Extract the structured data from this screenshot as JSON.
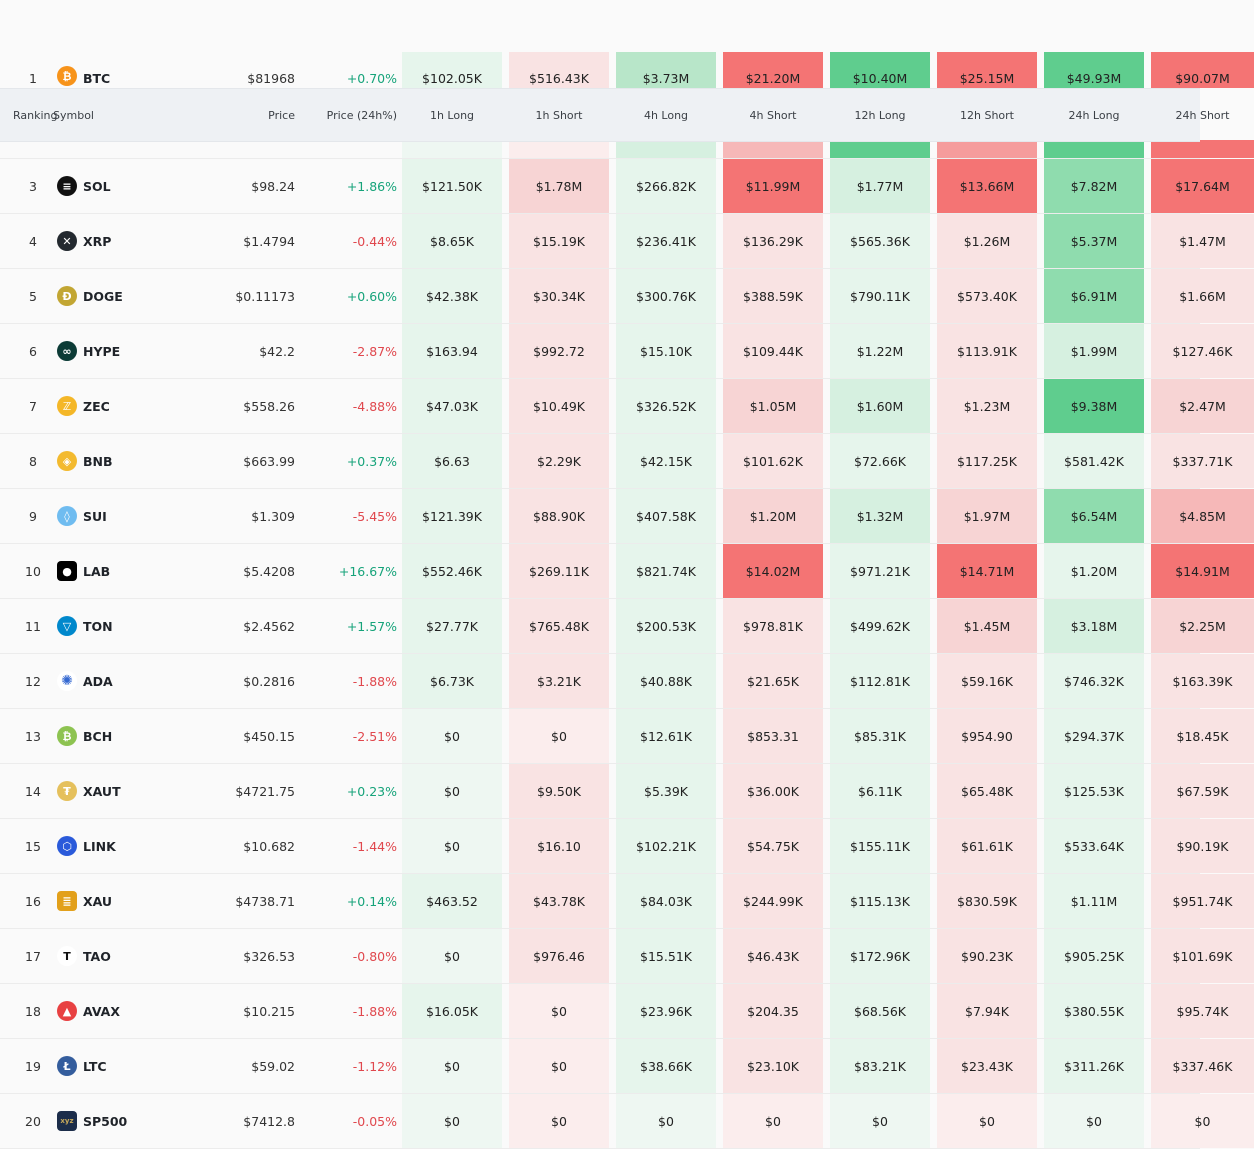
{
  "header": {
    "ranking": "Ranking",
    "symbol": "Symbol",
    "price": "Price",
    "change": "Price (24h%)",
    "cols": [
      "1h Long",
      "1h Short",
      "4h Long",
      "4h Short",
      "12h Long",
      "12h Short",
      "24h Long",
      "24h Short"
    ]
  },
  "heat_colors": {
    "long": [
      "#eef7f2",
      "#e6f5ec",
      "#d6f0e0",
      "#b8e6c9",
      "#8fdcae",
      "#5fcd8e"
    ],
    "short": [
      "#fbeded",
      "#f9e3e3",
      "#f7d4d4",
      "#f6b8b8",
      "#f59c9c",
      "#f47474"
    ]
  },
  "rows": [
    {
      "rank": "1",
      "symbol": "BTC",
      "icon": "bitcoin-icon",
      "icon_text": "₿",
      "icon_color": "#f7931a",
      "price": "$81968",
      "change": "+0.70%",
      "dir": "pos",
      "cells": [
        {
          "v": "$102.05K",
          "l": 1
        },
        {
          "v": "$516.43K",
          "l": 1
        },
        {
          "v": "$3.73M",
          "l": 3
        },
        {
          "v": "$21.20M",
          "l": 5
        },
        {
          "v": "$10.40M",
          "l": 5
        },
        {
          "v": "$25.15M",
          "l": 5
        },
        {
          "v": "$49.93M",
          "l": 5
        },
        {
          "v": "$90.07M",
          "l": 5
        }
      ]
    },
    {
      "rank": "3",
      "symbol": "SOL",
      "icon": "solana-icon",
      "icon_text": "≡",
      "icon_color": "#111111",
      "price": "$98.24",
      "change": "+1.86%",
      "dir": "pos",
      "cells": [
        {
          "v": "$121.50K",
          "l": 1
        },
        {
          "v": "$1.78M",
          "l": 2
        },
        {
          "v": "$266.82K",
          "l": 1
        },
        {
          "v": "$11.99M",
          "l": 5
        },
        {
          "v": "$1.77M",
          "l": 2
        },
        {
          "v": "$13.66M",
          "l": 5
        },
        {
          "v": "$7.82M",
          "l": 4
        },
        {
          "v": "$17.64M",
          "l": 5
        }
      ]
    },
    {
      "rank": "4",
      "symbol": "XRP",
      "icon": "xrp-icon",
      "icon_text": "✕",
      "icon_color": "#23292f",
      "price": "$1.4794",
      "change": "-0.44%",
      "dir": "neg",
      "cells": [
        {
          "v": "$8.65K",
          "l": 1
        },
        {
          "v": "$15.19K",
          "l": 1
        },
        {
          "v": "$236.41K",
          "l": 1
        },
        {
          "v": "$136.29K",
          "l": 1
        },
        {
          "v": "$565.36K",
          "l": 1
        },
        {
          "v": "$1.26M",
          "l": 1
        },
        {
          "v": "$5.37M",
          "l": 4
        },
        {
          "v": "$1.47M",
          "l": 1
        }
      ]
    },
    {
      "rank": "5",
      "symbol": "DOGE",
      "icon": "doge-icon",
      "icon_text": "Ð",
      "icon_color": "#c2a633",
      "price": "$0.11173",
      "change": "+0.60%",
      "dir": "pos",
      "cells": [
        {
          "v": "$42.38K",
          "l": 1
        },
        {
          "v": "$30.34K",
          "l": 1
        },
        {
          "v": "$300.76K",
          "l": 1
        },
        {
          "v": "$388.59K",
          "l": 1
        },
        {
          "v": "$790.11K",
          "l": 1
        },
        {
          "v": "$573.40K",
          "l": 1
        },
        {
          "v": "$6.91M",
          "l": 4
        },
        {
          "v": "$1.66M",
          "l": 1
        }
      ]
    },
    {
      "rank": "6",
      "symbol": "HYPE",
      "icon": "hyperliquid-icon",
      "icon_text": "∞",
      "icon_color": "#0c3b36",
      "price": "$42.2",
      "change": "-2.87%",
      "dir": "neg",
      "cells": [
        {
          "v": "$163.94",
          "l": 1
        },
        {
          "v": "$992.72",
          "l": 1
        },
        {
          "v": "$15.10K",
          "l": 1
        },
        {
          "v": "$109.44K",
          "l": 1
        },
        {
          "v": "$1.22M",
          "l": 1
        },
        {
          "v": "$113.91K",
          "l": 1
        },
        {
          "v": "$1.99M",
          "l": 2
        },
        {
          "v": "$127.46K",
          "l": 1
        }
      ]
    },
    {
      "rank": "7",
      "symbol": "ZEC",
      "icon": "zcash-icon",
      "icon_text": "ℤ",
      "icon_color": "#f4b728",
      "price": "$558.26",
      "change": "-4.88%",
      "dir": "neg",
      "cells": [
        {
          "v": "$47.03K",
          "l": 1
        },
        {
          "v": "$10.49K",
          "l": 1
        },
        {
          "v": "$326.52K",
          "l": 1
        },
        {
          "v": "$1.05M",
          "l": 2
        },
        {
          "v": "$1.60M",
          "l": 2
        },
        {
          "v": "$1.23M",
          "l": 1
        },
        {
          "v": "$9.38M",
          "l": 5
        },
        {
          "v": "$2.47M",
          "l": 2
        }
      ]
    },
    {
      "rank": "8",
      "symbol": "BNB",
      "icon": "bnb-icon",
      "icon_text": "◈",
      "icon_color": "#f3ba2f",
      "price": "$663.99",
      "change": "+0.37%",
      "dir": "pos",
      "cells": [
        {
          "v": "$6.63",
          "l": 1
        },
        {
          "v": "$2.29K",
          "l": 1
        },
        {
          "v": "$42.15K",
          "l": 1
        },
        {
          "v": "$101.62K",
          "l": 1
        },
        {
          "v": "$72.66K",
          "l": 1
        },
        {
          "v": "$117.25K",
          "l": 1
        },
        {
          "v": "$581.42K",
          "l": 1
        },
        {
          "v": "$337.71K",
          "l": 1
        }
      ]
    },
    {
      "rank": "9",
      "symbol": "SUI",
      "icon": "sui-icon",
      "icon_text": "◊",
      "icon_color": "#6fbcf0",
      "price": "$1.309",
      "change": "-5.45%",
      "dir": "neg",
      "cells": [
        {
          "v": "$121.39K",
          "l": 1
        },
        {
          "v": "$88.90K",
          "l": 1
        },
        {
          "v": "$407.58K",
          "l": 1
        },
        {
          "v": "$1.20M",
          "l": 2
        },
        {
          "v": "$1.32M",
          "l": 2
        },
        {
          "v": "$1.97M",
          "l": 2
        },
        {
          "v": "$6.54M",
          "l": 4
        },
        {
          "v": "$4.85M",
          "l": 3
        }
      ]
    },
    {
      "rank": "10",
      "symbol": "LAB",
      "icon": "lab-icon",
      "icon_text": "●",
      "icon_color": "#000000",
      "price": "$5.4208",
      "change": "+16.67%",
      "dir": "pos",
      "cells": [
        {
          "v": "$552.46K",
          "l": 1
        },
        {
          "v": "$269.11K",
          "l": 1
        },
        {
          "v": "$821.74K",
          "l": 1
        },
        {
          "v": "$14.02M",
          "l": 5
        },
        {
          "v": "$971.21K",
          "l": 1
        },
        {
          "v": "$14.71M",
          "l": 5
        },
        {
          "v": "$1.20M",
          "l": 1
        },
        {
          "v": "$14.91M",
          "l": 5
        }
      ]
    },
    {
      "rank": "11",
      "symbol": "TON",
      "icon": "ton-icon",
      "icon_text": "▽",
      "icon_color": "#0088cc",
      "price": "$2.4562",
      "change": "+1.57%",
      "dir": "pos",
      "cells": [
        {
          "v": "$27.77K",
          "l": 1
        },
        {
          "v": "$765.48K",
          "l": 1
        },
        {
          "v": "$200.53K",
          "l": 1
        },
        {
          "v": "$978.81K",
          "l": 1
        },
        {
          "v": "$499.62K",
          "l": 1
        },
        {
          "v": "$1.45M",
          "l": 2
        },
        {
          "v": "$3.18M",
          "l": 2
        },
        {
          "v": "$2.25M",
          "l": 2
        }
      ]
    },
    {
      "rank": "12",
      "symbol": "ADA",
      "icon": "cardano-icon",
      "icon_text": "✺",
      "icon_color": "#3468d1",
      "price": "$0.2816",
      "change": "-1.88%",
      "dir": "neg",
      "cells": [
        {
          "v": "$6.73K",
          "l": 1
        },
        {
          "v": "$3.21K",
          "l": 1
        },
        {
          "v": "$40.88K",
          "l": 1
        },
        {
          "v": "$21.65K",
          "l": 1
        },
        {
          "v": "$112.81K",
          "l": 1
        },
        {
          "v": "$59.16K",
          "l": 1
        },
        {
          "v": "$746.32K",
          "l": 1
        },
        {
          "v": "$163.39K",
          "l": 1
        }
      ]
    },
    {
      "rank": "13",
      "symbol": "BCH",
      "icon": "bitcoin-cash-icon",
      "icon_text": "₿",
      "icon_color": "#8dc351",
      "price": "$450.15",
      "change": "-2.51%",
      "dir": "neg",
      "cells": [
        {
          "v": "$0",
          "l": 0
        },
        {
          "v": "$0",
          "l": 0
        },
        {
          "v": "$12.61K",
          "l": 1
        },
        {
          "v": "$853.31",
          "l": 1
        },
        {
          "v": "$85.31K",
          "l": 1
        },
        {
          "v": "$954.90",
          "l": 1
        },
        {
          "v": "$294.37K",
          "l": 1
        },
        {
          "v": "$18.45K",
          "l": 1
        }
      ]
    },
    {
      "rank": "14",
      "symbol": "XAUT",
      "icon": "tether-gold-icon",
      "icon_text": "₮",
      "icon_color": "#e5c05c",
      "price": "$4721.75",
      "change": "+0.23%",
      "dir": "pos",
      "cells": [
        {
          "v": "$0",
          "l": 0
        },
        {
          "v": "$9.50K",
          "l": 1
        },
        {
          "v": "$5.39K",
          "l": 1
        },
        {
          "v": "$36.00K",
          "l": 1
        },
        {
          "v": "$6.11K",
          "l": 1
        },
        {
          "v": "$65.48K",
          "l": 1
        },
        {
          "v": "$125.53K",
          "l": 1
        },
        {
          "v": "$67.59K",
          "l": 1
        }
      ]
    },
    {
      "rank": "15",
      "symbol": "LINK",
      "icon": "chainlink-icon",
      "icon_text": "⬡",
      "icon_color": "#2a5ada",
      "price": "$10.682",
      "change": "-1.44%",
      "dir": "neg",
      "cells": [
        {
          "v": "$0",
          "l": 0
        },
        {
          "v": "$16.10",
          "l": 1
        },
        {
          "v": "$102.21K",
          "l": 1
        },
        {
          "v": "$54.75K",
          "l": 1
        },
        {
          "v": "$155.11K",
          "l": 1
        },
        {
          "v": "$61.61K",
          "l": 1
        },
        {
          "v": "$533.64K",
          "l": 1
        },
        {
          "v": "$90.19K",
          "l": 1
        }
      ]
    },
    {
      "rank": "16",
      "symbol": "XAU",
      "icon": "gold-bars-icon",
      "icon_text": "≣",
      "icon_color": "#e2a01b",
      "price": "$4738.71",
      "change": "+0.14%",
      "dir": "pos",
      "cells": [
        {
          "v": "$463.52",
          "l": 1
        },
        {
          "v": "$43.78K",
          "l": 1
        },
        {
          "v": "$84.03K",
          "l": 1
        },
        {
          "v": "$244.99K",
          "l": 1
        },
        {
          "v": "$115.13K",
          "l": 1
        },
        {
          "v": "$830.59K",
          "l": 1
        },
        {
          "v": "$1.11M",
          "l": 1
        },
        {
          "v": "$951.74K",
          "l": 1
        }
      ]
    },
    {
      "rank": "17",
      "symbol": "TAO",
      "icon": "bittensor-icon",
      "icon_text": "T",
      "icon_color": "#ffffff",
      "price": "$326.53",
      "change": "-0.80%",
      "dir": "neg",
      "cells": [
        {
          "v": "$0",
          "l": 0
        },
        {
          "v": "$976.46",
          "l": 1
        },
        {
          "v": "$15.51K",
          "l": 1
        },
        {
          "v": "$46.43K",
          "l": 1
        },
        {
          "v": "$172.96K",
          "l": 1
        },
        {
          "v": "$90.23K",
          "l": 1
        },
        {
          "v": "$905.25K",
          "l": 1
        },
        {
          "v": "$101.69K",
          "l": 1
        }
      ]
    },
    {
      "rank": "18",
      "symbol": "AVAX",
      "icon": "avalanche-icon",
      "icon_text": "▲",
      "icon_color": "#e84142",
      "price": "$10.215",
      "change": "-1.88%",
      "dir": "neg",
      "cells": [
        {
          "v": "$16.05K",
          "l": 1
        },
        {
          "v": "$0",
          "l": 0
        },
        {
          "v": "$23.96K",
          "l": 1
        },
        {
          "v": "$204.35",
          "l": 1
        },
        {
          "v": "$68.56K",
          "l": 1
        },
        {
          "v": "$7.94K",
          "l": 1
        },
        {
          "v": "$380.55K",
          "l": 1
        },
        {
          "v": "$95.74K",
          "l": 1
        }
      ]
    },
    {
      "rank": "19",
      "symbol": "LTC",
      "icon": "litecoin-icon",
      "icon_text": "Ł",
      "icon_color": "#345d9d",
      "price": "$59.02",
      "change": "-1.12%",
      "dir": "neg",
      "cells": [
        {
          "v": "$0",
          "l": 0
        },
        {
          "v": "$0",
          "l": 0
        },
        {
          "v": "$38.66K",
          "l": 1
        },
        {
          "v": "$23.10K",
          "l": 1
        },
        {
          "v": "$83.21K",
          "l": 1
        },
        {
          "v": "$23.43K",
          "l": 1
        },
        {
          "v": "$311.26K",
          "l": 1
        },
        {
          "v": "$337.46K",
          "l": 1
        }
      ]
    },
    {
      "rank": "20",
      "symbol": "SP500",
      "icon": "xyz-icon",
      "icon_text": "xyz",
      "icon_color": "#1c2d4a",
      "price": "$7412.8",
      "change": "-0.05%",
      "dir": "neg",
      "cells": [
        {
          "v": "$0",
          "l": 0
        },
        {
          "v": "$0",
          "l": 0
        },
        {
          "v": "$0",
          "l": 0
        },
        {
          "v": "$0",
          "l": 0
        },
        {
          "v": "$0",
          "l": 0
        },
        {
          "v": "$0",
          "l": 0
        },
        {
          "v": "$0",
          "l": 0
        },
        {
          "v": "$0",
          "l": 0
        }
      ]
    }
  ]
}
